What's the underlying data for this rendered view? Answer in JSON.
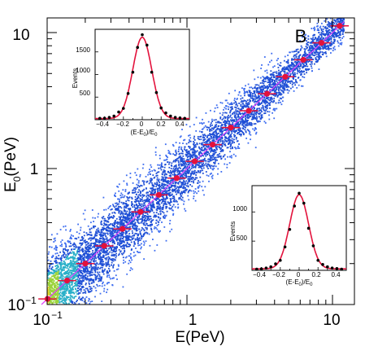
{
  "chart_data": [
    {
      "type": "scatter",
      "panel_label": "B",
      "xlabel": "E(PeV)",
      "ylabel": "E_0(PeV)",
      "xscale": "log",
      "yscale": "log",
      "xlim": [
        0.1,
        12
      ],
      "ylim": [
        0.1,
        12
      ],
      "x_tick_labels": [
        "10^-1",
        "1",
        "10"
      ],
      "y_tick_labels": [
        "10^-1",
        "1",
        "10"
      ],
      "fit_line": "y = x (magenta)",
      "profile_points": {
        "x": [
          0.11,
          0.15,
          0.2,
          0.27,
          0.36,
          0.48,
          0.64,
          0.85,
          1.13,
          1.5,
          2.0,
          2.66,
          3.55,
          4.73,
          6.3,
          8.4,
          11.2
        ],
        "y": [
          0.11,
          0.15,
          0.2,
          0.27,
          0.36,
          0.48,
          0.64,
          0.85,
          1.13,
          1.5,
          2.0,
          2.66,
          3.55,
          4.73,
          6.3,
          8.4,
          11.2
        ]
      }
    },
    {
      "type": "histogram",
      "position": "top-left inset",
      "xlabel": "(E-E_0)/E_0",
      "ylabel": "Events",
      "xlim": [
        -0.5,
        0.5
      ],
      "ylim": [
        0,
        2000
      ],
      "x_ticks": [
        "-0.4",
        "-0.2",
        "0",
        "0.2",
        "0.4"
      ],
      "y_ticks": [
        "500",
        "1000",
        "1500"
      ],
      "fit": "gaussian",
      "fit_peak": 1800,
      "fit_mean": 0.0,
      "fit_sigma": 0.1,
      "points": {
        "x": [
          -0.45,
          -0.4,
          -0.35,
          -0.3,
          -0.25,
          -0.2,
          -0.15,
          -0.1,
          -0.05,
          0.0,
          0.05,
          0.1,
          0.15,
          0.2,
          0.25,
          0.3,
          0.35,
          0.4,
          0.45
        ],
        "y": [
          30,
          35,
          50,
          80,
          170,
          250,
          580,
          1050,
          1600,
          1880,
          1650,
          1050,
          600,
          260,
          150,
          80,
          50,
          40,
          30
        ]
      }
    },
    {
      "type": "histogram",
      "position": "bottom-right inset",
      "xlabel": "(E-E_0)/E_0",
      "ylabel": "Events",
      "xlim": [
        -0.5,
        0.5
      ],
      "ylim": [
        0,
        1450
      ],
      "x_ticks": [
        "-0.4",
        "-0.2",
        "0",
        "0.2",
        "0.4"
      ],
      "y_ticks": [
        "500",
        "1000"
      ],
      "fit": "gaussian",
      "fit_peak": 1270,
      "fit_mean": 0.0,
      "fit_sigma": 0.1,
      "points": {
        "x": [
          -0.45,
          -0.4,
          -0.35,
          -0.3,
          -0.25,
          -0.2,
          -0.15,
          -0.1,
          -0.05,
          0.0,
          0.05,
          0.1,
          0.15,
          0.2,
          0.25,
          0.3,
          0.35,
          0.4,
          0.45
        ],
        "y": [
          20,
          25,
          40,
          60,
          110,
          170,
          400,
          700,
          1100,
          1320,
          1150,
          720,
          420,
          170,
          100,
          60,
          40,
          30,
          20
        ]
      }
    }
  ]
}
